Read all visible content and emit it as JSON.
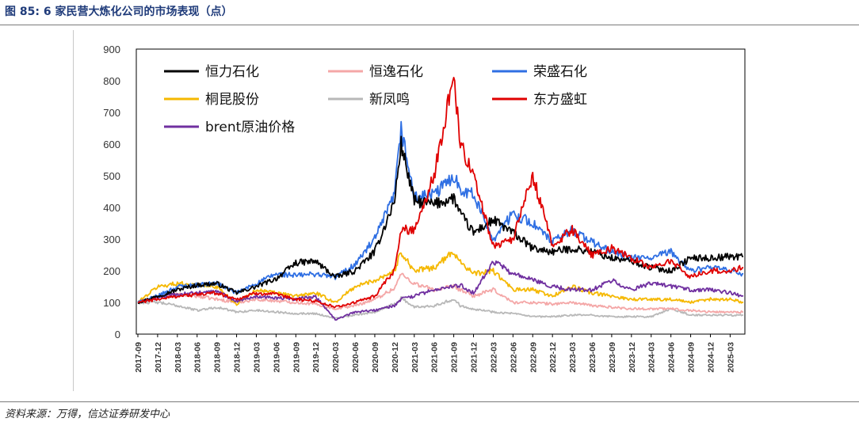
{
  "figure": {
    "title": "图 85:  6 家民营大炼化公司的市场表现（点）",
    "source": "资料来源：万得，信达证券研发中心"
  },
  "chart_data": {
    "type": "line",
    "ylim": [
      0,
      900
    ],
    "yticks": [
      0,
      100,
      200,
      300,
      400,
      500,
      600,
      700,
      800,
      900
    ],
    "x_tick_labels": [
      "2017-09",
      "2017-12",
      "2018-03",
      "2018-06",
      "2018-09",
      "2018-12",
      "2019-03",
      "2019-06",
      "2019-09",
      "2019-12",
      "2020-03",
      "2020-06",
      "2020-09",
      "2020-12",
      "2021-03",
      "2021-06",
      "2021-09",
      "2021-12",
      "2022-03",
      "2022-06",
      "2022-09",
      "2022-12",
      "2023-03",
      "2023-06",
      "2023-09",
      "2023-12",
      "2024-03",
      "2024-06",
      "2024-09",
      "2024-12",
      "2025-03"
    ],
    "legend_position": "top-left inside",
    "x": [
      "2017-09",
      "2017-12",
      "2018-03",
      "2018-06",
      "2018-09",
      "2018-12",
      "2019-03",
      "2019-06",
      "2019-09",
      "2019-12",
      "2020-03",
      "2020-06",
      "2020-09",
      "2020-12",
      "2021-01",
      "2021-03",
      "2021-06",
      "2021-09",
      "2021-10",
      "2021-12",
      "2022-03",
      "2022-06",
      "2022-09",
      "2022-12",
      "2023-03",
      "2023-06",
      "2023-09",
      "2023-12",
      "2024-03",
      "2024-06",
      "2024-09",
      "2024-12",
      "2025-03",
      "2025-05"
    ],
    "series": [
      {
        "name": "恒力石化",
        "color": "#000000",
        "values": [
          100,
          120,
          140,
          155,
          160,
          130,
          150,
          175,
          225,
          230,
          180,
          200,
          260,
          420,
          600,
          420,
          410,
          430,
          380,
          320,
          360,
          320,
          270,
          260,
          270,
          260,
          240,
          230,
          210,
          200,
          240,
          240,
          245,
          245
        ]
      },
      {
        "name": "恒逸石化",
        "color": "#f4a7a7",
        "values": [
          100,
          115,
          125,
          120,
          110,
          100,
          110,
          105,
          100,
          95,
          80,
          90,
          110,
          145,
          190,
          160,
          140,
          150,
          140,
          120,
          140,
          100,
          100,
          95,
          100,
          90,
          85,
          80,
          80,
          80,
          75,
          70,
          70,
          70
        ]
      },
      {
        "name": "荣盛石化",
        "color": "#2f6fe3",
        "values": [
          100,
          120,
          150,
          155,
          160,
          130,
          160,
          190,
          185,
          190,
          180,
          220,
          300,
          440,
          650,
          430,
          440,
          500,
          460,
          440,
          300,
          380,
          350,
          290,
          330,
          290,
          260,
          240,
          240,
          260,
          200,
          210,
          200,
          190
        ]
      },
      {
        "name": "桐昆股份",
        "color": "#f5b800",
        "values": [
          100,
          150,
          160,
          155,
          150,
          95,
          140,
          130,
          120,
          130,
          100,
          150,
          170,
          200,
          260,
          200,
          210,
          260,
          230,
          190,
          200,
          140,
          140,
          120,
          150,
          130,
          120,
          110,
          110,
          110,
          100,
          110,
          110,
          100
        ]
      },
      {
        "name": "新凤鸣",
        "color": "#b8b8b8",
        "values": [
          100,
          100,
          90,
          75,
          85,
          70,
          75,
          70,
          65,
          65,
          50,
          60,
          70,
          95,
          115,
          85,
          90,
          110,
          90,
          80,
          70,
          65,
          55,
          55,
          60,
          60,
          55,
          55,
          55,
          80,
          60,
          60,
          60,
          60
        ]
      },
      {
        "name": "东方盛虹",
        "color": "#e00000",
        "values": [
          100,
          110,
          120,
          125,
          130,
          110,
          130,
          125,
          110,
          105,
          85,
          100,
          120,
          200,
          330,
          330,
          500,
          820,
          600,
          500,
          280,
          300,
          500,
          280,
          330,
          250,
          270,
          240,
          210,
          230,
          180,
          200,
          200,
          210
        ]
      },
      {
        "name": "brent原油价格",
        "color": "#7030a0",
        "values": [
          100,
          115,
          125,
          130,
          135,
          105,
          120,
          115,
          110,
          120,
          45,
          70,
          75,
          90,
          110,
          120,
          140,
          150,
          155,
          130,
          230,
          190,
          170,
          150,
          140,
          140,
          170,
          140,
          160,
          150,
          140,
          140,
          130,
          120
        ]
      }
    ]
  }
}
